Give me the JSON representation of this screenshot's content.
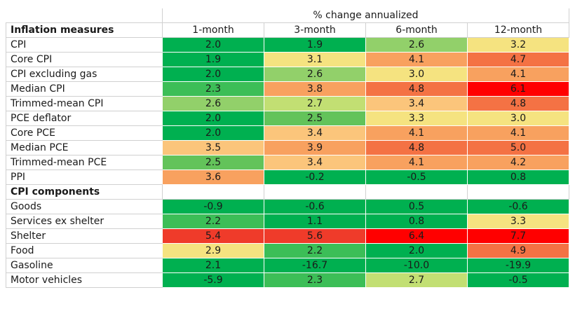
{
  "chart_data": {
    "type": "heatmap",
    "title": "% change annualized",
    "columns": [
      "1-month",
      "3-month",
      "6-month",
      "12-month"
    ],
    "sections": [
      {
        "name": "Inflation measures",
        "rows": [
          {
            "label": "CPI",
            "values": [
              "2.0",
              "1.9",
              "2.6",
              "3.2"
            ]
          },
          {
            "label": "Core CPI",
            "values": [
              "1.9",
              "3.1",
              "4.1",
              "4.7"
            ]
          },
          {
            "label": "CPI excluding gas",
            "values": [
              "2.0",
              "2.6",
              "3.0",
              "4.1"
            ]
          },
          {
            "label": "Median CPI",
            "values": [
              "2.3",
              "3.8",
              "4.8",
              "6.1"
            ]
          },
          {
            "label": "Trimmed-mean CPI",
            "values": [
              "2.6",
              "2.7",
              "3.4",
              "4.8"
            ]
          },
          {
            "label": "PCE deflator",
            "values": [
              "2.0",
              "2.5",
              "3.3",
              "3.0"
            ]
          },
          {
            "label": "Core PCE",
            "values": [
              "2.0",
              "3.4",
              "4.1",
              "4.1"
            ]
          },
          {
            "label": "Median PCE",
            "values": [
              "3.5",
              "3.9",
              "4.8",
              "5.0"
            ]
          },
          {
            "label": "Trimmed-mean PCE",
            "values": [
              "2.5",
              "3.4",
              "4.1",
              "4.2"
            ]
          },
          {
            "label": "PPI",
            "values": [
              "3.6",
              "-0.2",
              "-0.5",
              "0.8"
            ]
          }
        ]
      },
      {
        "name": "CPI components",
        "rows": [
          {
            "label": "Goods",
            "values": [
              "-0.9",
              "-0.6",
              "0.5",
              "-0.6"
            ]
          },
          {
            "label": "Services ex shelter",
            "values": [
              "2.2",
              "1.1",
              "0.8",
              "3.3"
            ]
          },
          {
            "label": "Shelter",
            "values": [
              "5.4",
              "5.6",
              "6.4",
              "7.7"
            ]
          },
          {
            "label": "Food",
            "values": [
              "2.9",
              "2.2",
              "2.0",
              "4.9"
            ]
          },
          {
            "label": "Gasoline",
            "values": [
              "2.1",
              "-16.7",
              "-10.0",
              "-19.9"
            ]
          },
          {
            "label": "Motor vehicles",
            "values": [
              "-5.9",
              "2.3",
              "2.7",
              "-0.5"
            ]
          }
        ]
      }
    ],
    "colors": {
      "green_dark": "#00b050",
      "green": "#3cbe57",
      "green_mid": "#63c35a",
      "green_light": "#92d06a",
      "yellow_green": "#c2df73",
      "yellow": "#f5e380",
      "orange_light": "#fbc57b",
      "orange": "#f8a15f",
      "orange_red": "#f47244",
      "red": "#ef3b2a",
      "red_strong": "#ff0000"
    }
  }
}
